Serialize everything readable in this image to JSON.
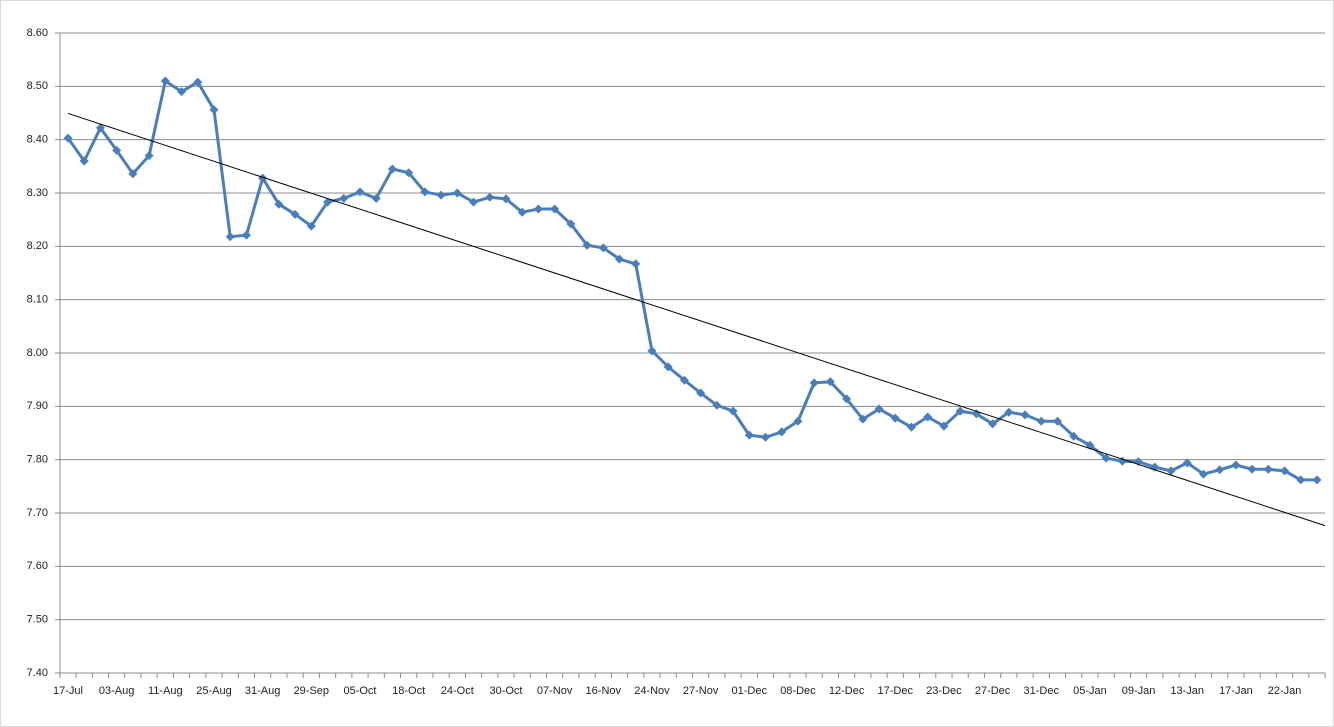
{
  "chart_data": {
    "type": "line",
    "categories": [
      "17-Jul",
      null,
      null,
      "03-Aug",
      null,
      null,
      "11-Aug",
      null,
      null,
      "25-Aug",
      null,
      null,
      "31-Aug",
      null,
      null,
      "29-Sep",
      null,
      null,
      "05-Oct",
      null,
      null,
      "18-Oct",
      null,
      null,
      "24-Oct",
      null,
      null,
      "30-Oct",
      null,
      null,
      "07-Nov",
      null,
      null,
      "16-Nov",
      null,
      null,
      "24-Nov",
      null,
      null,
      "27-Nov",
      null,
      null,
      "01-Dec",
      null,
      null,
      "08-Dec",
      null,
      null,
      "12-Dec",
      null,
      null,
      "17-Dec",
      null,
      null,
      "23-Dec",
      null,
      null,
      "27-Dec",
      null,
      null,
      "31-Dec",
      null,
      null,
      "05-Jan",
      null,
      null,
      "09-Jan",
      null,
      null,
      "13-Jan",
      null,
      null,
      "17-Jan",
      null,
      null,
      "22-Jan",
      null,
      null
    ],
    "series": [
      {
        "color": "#4a7ebb",
        "values": [
          8.403,
          8.36,
          8.422,
          8.38,
          8.336,
          8.37,
          8.51,
          8.49,
          8.508,
          8.456,
          8.218,
          8.221,
          8.328,
          8.279,
          8.26,
          8.238,
          8.283,
          8.29,
          8.302,
          8.29,
          8.345,
          8.338,
          8.302,
          8.296,
          8.3,
          8.283,
          8.292,
          8.289,
          8.264,
          8.27,
          8.27,
          8.242,
          8.202,
          8.197,
          8.176,
          8.167,
          8.004,
          7.974,
          7.949,
          7.925,
          7.902,
          7.891,
          7.846,
          7.842,
          7.852,
          7.872,
          7.944,
          7.946,
          7.914,
          7.876,
          7.895,
          7.878,
          7.861,
          7.88,
          7.863,
          7.891,
          7.886,
          7.867,
          7.889,
          7.884,
          7.872,
          7.872,
          7.844,
          7.827,
          7.803,
          7.797,
          7.796,
          7.786,
          7.779,
          7.794,
          7.773,
          7.781,
          7.79,
          7.782,
          7.782,
          7.779,
          7.762,
          7.762
        ]
      }
    ],
    "trendline": "linear",
    "trendline_color": "#000000",
    "ylim": [
      7.4,
      8.6
    ],
    "yticks": [
      {
        "value": 7.4,
        "label": "7.40"
      },
      {
        "value": 7.5,
        "label": "7.50"
      },
      {
        "value": 7.6,
        "label": "7.60"
      },
      {
        "value": 7.7,
        "label": "7.70"
      },
      {
        "value": 7.8,
        "label": "7.80"
      },
      {
        "value": 7.9,
        "label": "7.90"
      },
      {
        "value": 8.0,
        "label": "8.00"
      },
      {
        "value": 8.1,
        "label": "8.10"
      },
      {
        "value": 8.2,
        "label": "8.20"
      },
      {
        "value": 8.3,
        "label": "8.30"
      },
      {
        "value": 8.4,
        "label": "8.40"
      },
      {
        "value": 8.5,
        "label": "8.50"
      },
      {
        "value": 8.6,
        "label": "8.60"
      }
    ],
    "grid": true
  }
}
